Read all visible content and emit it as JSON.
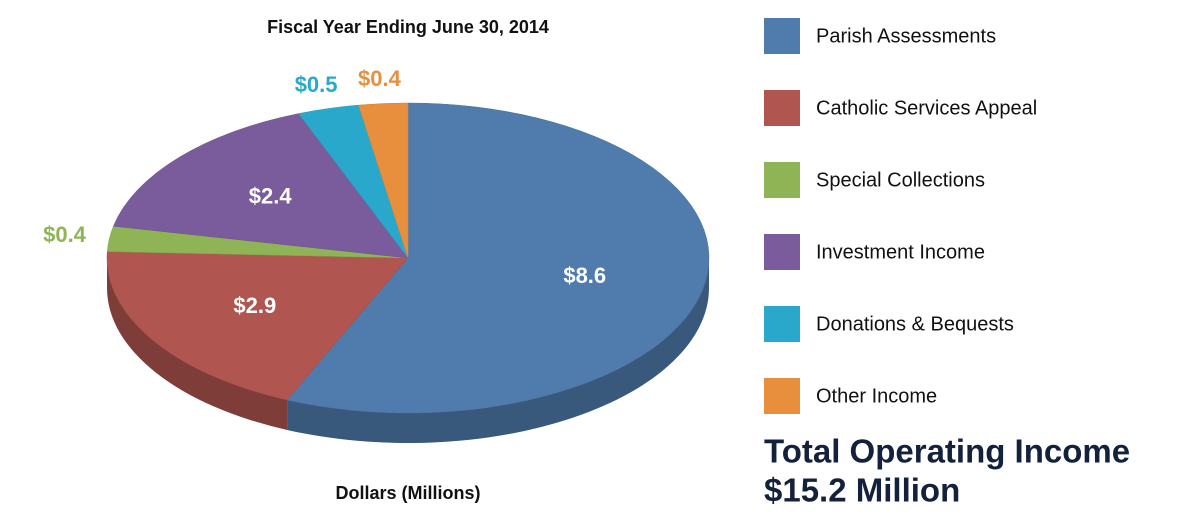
{
  "chart_data": {
    "type": "pie",
    "title": "Fiscal Year Ending June 30, 2014",
    "subtitle": "Dollars (Millions)",
    "categories": [
      "Parish Assessments",
      "Catholic Services Appeal",
      "Special Collections",
      "Investment Income",
      "Donations & Bequests",
      "Other Income"
    ],
    "values": [
      8.6,
      2.9,
      0.4,
      2.4,
      0.5,
      0.4
    ],
    "value_labels": [
      "$8.6",
      "$2.9",
      "$0.4",
      "$2.4",
      "$0.5",
      "$0.4"
    ],
    "colors": [
      "#4f7cac",
      "#b0554f",
      "#8fb456",
      "#7a5c9c",
      "#2aa8cc",
      "#e88f3e"
    ],
    "legend": "right",
    "annotations": [
      "Total Operating Income",
      "$15.2 Million"
    ]
  }
}
